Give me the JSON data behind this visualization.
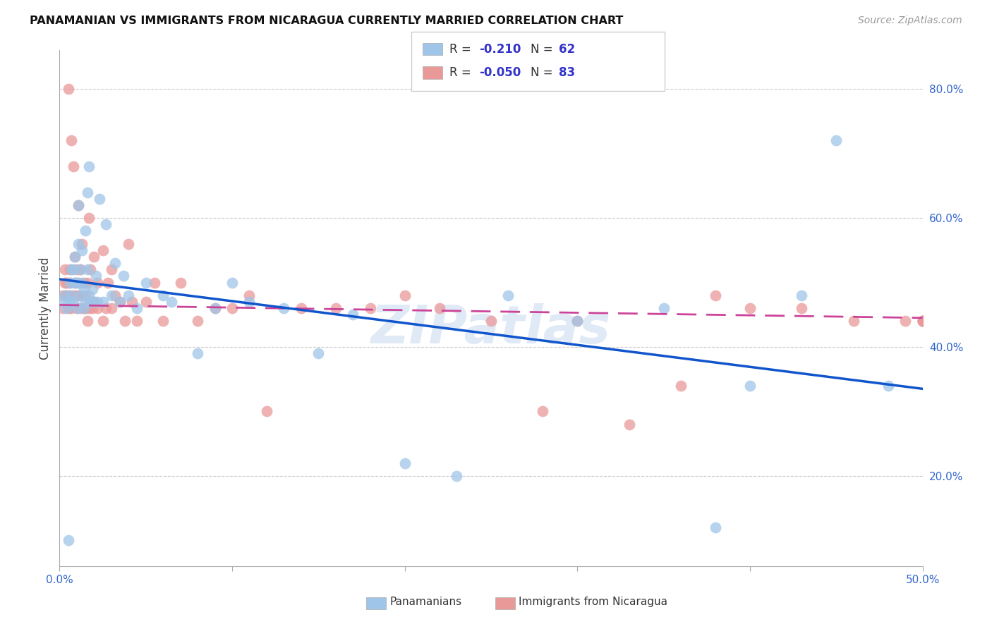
{
  "title": "PANAMANIAN VS IMMIGRANTS FROM NICARAGUA CURRENTLY MARRIED CORRELATION CHART",
  "source": "Source: ZipAtlas.com",
  "ylabel": "Currently Married",
  "watermark": "ZIPatlas",
  "legend_blue_r_val": "-0.210",
  "legend_blue_n_val": "62",
  "legend_pink_r_val": "-0.050",
  "legend_pink_n_val": "83",
  "legend_blue_label": "Panamanians",
  "legend_pink_label": "Immigrants from Nicaragua",
  "xlim": [
    0.0,
    0.5
  ],
  "ylim": [
    0.06,
    0.86
  ],
  "yticks": [
    0.2,
    0.4,
    0.6,
    0.8
  ],
  "yticklabels": [
    "20.0%",
    "40.0%",
    "60.0%",
    "80.0%"
  ],
  "xticks": [
    0.0,
    0.5
  ],
  "xticklabels": [
    "0.0%",
    "50.0%"
  ],
  "blue_color": "#9FC5E8",
  "pink_color": "#EA9999",
  "blue_line_color": "#1155CC",
  "pink_line_color": "#CC4499",
  "blue_line_x0": 0.0,
  "blue_line_y0": 0.505,
  "blue_line_x1": 0.5,
  "blue_line_y1": 0.335,
  "pink_line_x0": 0.0,
  "pink_line_y0": 0.465,
  "pink_line_x1": 0.5,
  "pink_line_y1": 0.445,
  "blue_x": [
    0.002,
    0.003,
    0.004,
    0.005,
    0.006,
    0.006,
    0.007,
    0.007,
    0.008,
    0.008,
    0.009,
    0.009,
    0.01,
    0.01,
    0.011,
    0.011,
    0.012,
    0.012,
    0.013,
    0.013,
    0.014,
    0.014,
    0.015,
    0.015,
    0.016,
    0.016,
    0.017,
    0.017,
    0.018,
    0.019,
    0.02,
    0.021,
    0.022,
    0.023,
    0.025,
    0.027,
    0.03,
    0.032,
    0.035,
    0.037,
    0.04,
    0.045,
    0.05,
    0.06,
    0.065,
    0.08,
    0.09,
    0.1,
    0.11,
    0.13,
    0.15,
    0.17,
    0.2,
    0.23,
    0.26,
    0.3,
    0.35,
    0.38,
    0.4,
    0.43,
    0.45,
    0.48
  ],
  "blue_y": [
    0.47,
    0.48,
    0.46,
    0.1,
    0.47,
    0.5,
    0.48,
    0.52,
    0.47,
    0.52,
    0.5,
    0.54,
    0.46,
    0.5,
    0.56,
    0.62,
    0.48,
    0.52,
    0.5,
    0.55,
    0.46,
    0.49,
    0.47,
    0.58,
    0.52,
    0.64,
    0.48,
    0.68,
    0.47,
    0.49,
    0.47,
    0.51,
    0.47,
    0.63,
    0.47,
    0.59,
    0.48,
    0.53,
    0.47,
    0.51,
    0.48,
    0.46,
    0.5,
    0.48,
    0.47,
    0.39,
    0.46,
    0.5,
    0.47,
    0.46,
    0.39,
    0.45,
    0.22,
    0.2,
    0.48,
    0.44,
    0.46,
    0.12,
    0.34,
    0.48,
    0.72,
    0.34
  ],
  "pink_x": [
    0.002,
    0.002,
    0.003,
    0.003,
    0.004,
    0.004,
    0.005,
    0.005,
    0.005,
    0.006,
    0.006,
    0.007,
    0.007,
    0.008,
    0.008,
    0.009,
    0.009,
    0.01,
    0.01,
    0.01,
    0.011,
    0.011,
    0.012,
    0.012,
    0.013,
    0.013,
    0.014,
    0.014,
    0.015,
    0.015,
    0.016,
    0.016,
    0.017,
    0.017,
    0.018,
    0.018,
    0.019,
    0.02,
    0.02,
    0.022,
    0.022,
    0.025,
    0.025,
    0.027,
    0.028,
    0.03,
    0.03,
    0.032,
    0.035,
    0.038,
    0.04,
    0.042,
    0.045,
    0.05,
    0.055,
    0.06,
    0.07,
    0.08,
    0.09,
    0.1,
    0.11,
    0.12,
    0.14,
    0.16,
    0.18,
    0.2,
    0.22,
    0.25,
    0.28,
    0.3,
    0.33,
    0.36,
    0.38,
    0.4,
    0.43,
    0.46,
    0.49,
    0.5,
    0.5,
    0.5,
    0.5,
    0.5,
    0.5
  ],
  "pink_y": [
    0.46,
    0.48,
    0.5,
    0.52,
    0.48,
    0.5,
    0.46,
    0.48,
    0.8,
    0.5,
    0.52,
    0.46,
    0.72,
    0.48,
    0.68,
    0.5,
    0.54,
    0.46,
    0.48,
    0.52,
    0.5,
    0.62,
    0.46,
    0.52,
    0.48,
    0.56,
    0.46,
    0.5,
    0.46,
    0.48,
    0.5,
    0.44,
    0.46,
    0.6,
    0.47,
    0.52,
    0.46,
    0.47,
    0.54,
    0.46,
    0.5,
    0.44,
    0.55,
    0.46,
    0.5,
    0.46,
    0.52,
    0.48,
    0.47,
    0.44,
    0.56,
    0.47,
    0.44,
    0.47,
    0.5,
    0.44,
    0.5,
    0.44,
    0.46,
    0.46,
    0.48,
    0.3,
    0.46,
    0.46,
    0.46,
    0.48,
    0.46,
    0.44,
    0.3,
    0.44,
    0.28,
    0.34,
    0.48,
    0.46,
    0.46,
    0.44,
    0.44,
    0.44,
    0.44,
    0.44,
    0.44,
    0.44,
    0.44
  ]
}
